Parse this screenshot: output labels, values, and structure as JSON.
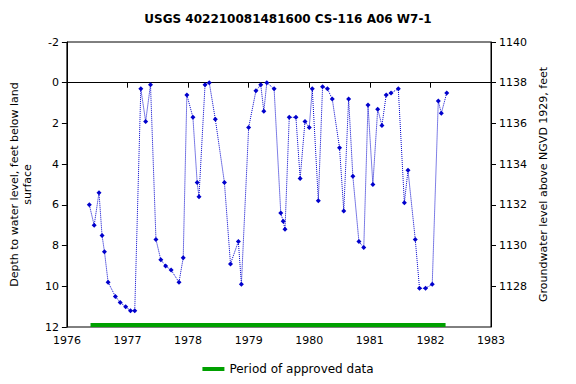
{
  "chart_data": {
    "type": "line",
    "title": "USGS 402210081481600 CS-116 A06 W7-1",
    "x_label": null,
    "y_label": "Depth to water level, feet below land\nsurface",
    "y2_label": "Groundwater level above NGVD 1929, feet",
    "xlim": [
      1976,
      1983
    ],
    "xticks": [
      1976,
      1977,
      1978,
      1979,
      1980,
      1981,
      1982,
      1983
    ],
    "ylim": [
      12,
      -2
    ],
    "yticks": [
      -2,
      0,
      2,
      4,
      6,
      8,
      10,
      12
    ],
    "y2lim": [
      1126,
      1140
    ],
    "y2ticks": [
      1128,
      1130,
      1132,
      1134,
      1136,
      1138,
      1140
    ],
    "grid": false,
    "legend": "bottom",
    "series": [
      {
        "x": [
          1976.37,
          1976.45,
          1976.53,
          1976.58,
          1976.62,
          1976.68,
          1976.8,
          1976.88,
          1976.97,
          1977.05,
          1977.12,
          1977.22,
          1977.3,
          1977.38,
          1977.47,
          1977.55,
          1977.63,
          1977.72,
          1977.85,
          1977.92,
          1977.98,
          1978.08,
          1978.15,
          1978.18,
          1978.28,
          1978.35,
          1978.45,
          1978.6,
          1978.7,
          1978.83,
          1978.88,
          1979.0,
          1979.12,
          1979.2,
          1979.25,
          1979.3,
          1979.42,
          1979.53,
          1979.57,
          1979.6,
          1979.67,
          1979.78,
          1979.85,
          1979.93,
          1980.0,
          1980.05,
          1980.15,
          1980.22,
          1980.3,
          1980.38,
          1980.5,
          1980.57,
          1980.65,
          1980.72,
          1980.82,
          1980.9,
          1980.97,
          1981.05,
          1981.13,
          1981.2,
          1981.27,
          1981.35,
          1981.47,
          1981.57,
          1981.63,
          1981.75,
          1981.82,
          1981.92,
          1982.03,
          1982.13,
          1982.18,
          1982.27
        ],
        "values": [
          6.0,
          7.0,
          5.4,
          7.5,
          8.3,
          9.8,
          10.5,
          10.8,
          11.0,
          11.2,
          11.2,
          0.3,
          1.9,
          0.1,
          7.7,
          8.7,
          9.0,
          9.2,
          9.8,
          8.6,
          0.6,
          1.7,
          4.9,
          5.6,
          0.1,
          0.0,
          1.8,
          4.9,
          8.9,
          7.8,
          9.9,
          2.2,
          0.4,
          0.1,
          1.4,
          0.0,
          0.3,
          6.4,
          6.8,
          7.2,
          1.7,
          1.7,
          4.7,
          1.9,
          2.2,
          0.3,
          5.8,
          0.2,
          0.3,
          0.8,
          3.2,
          6.3,
          0.8,
          4.6,
          7.8,
          8.1,
          1.1,
          5.0,
          1.3,
          2.1,
          0.6,
          0.5,
          0.3,
          5.9,
          4.3,
          7.7,
          10.1,
          10.1,
          9.9,
          0.9,
          1.5,
          0.5
        ],
        "color": "#0000cc",
        "marker": "diamond",
        "line_style": "dotted"
      },
      {
        "name": "Period of approved data",
        "x": [
          1976.39,
          1982.25
        ],
        "values": [
          11.9,
          11.9
        ],
        "color": "#00a000",
        "line_style": "solid"
      }
    ]
  }
}
